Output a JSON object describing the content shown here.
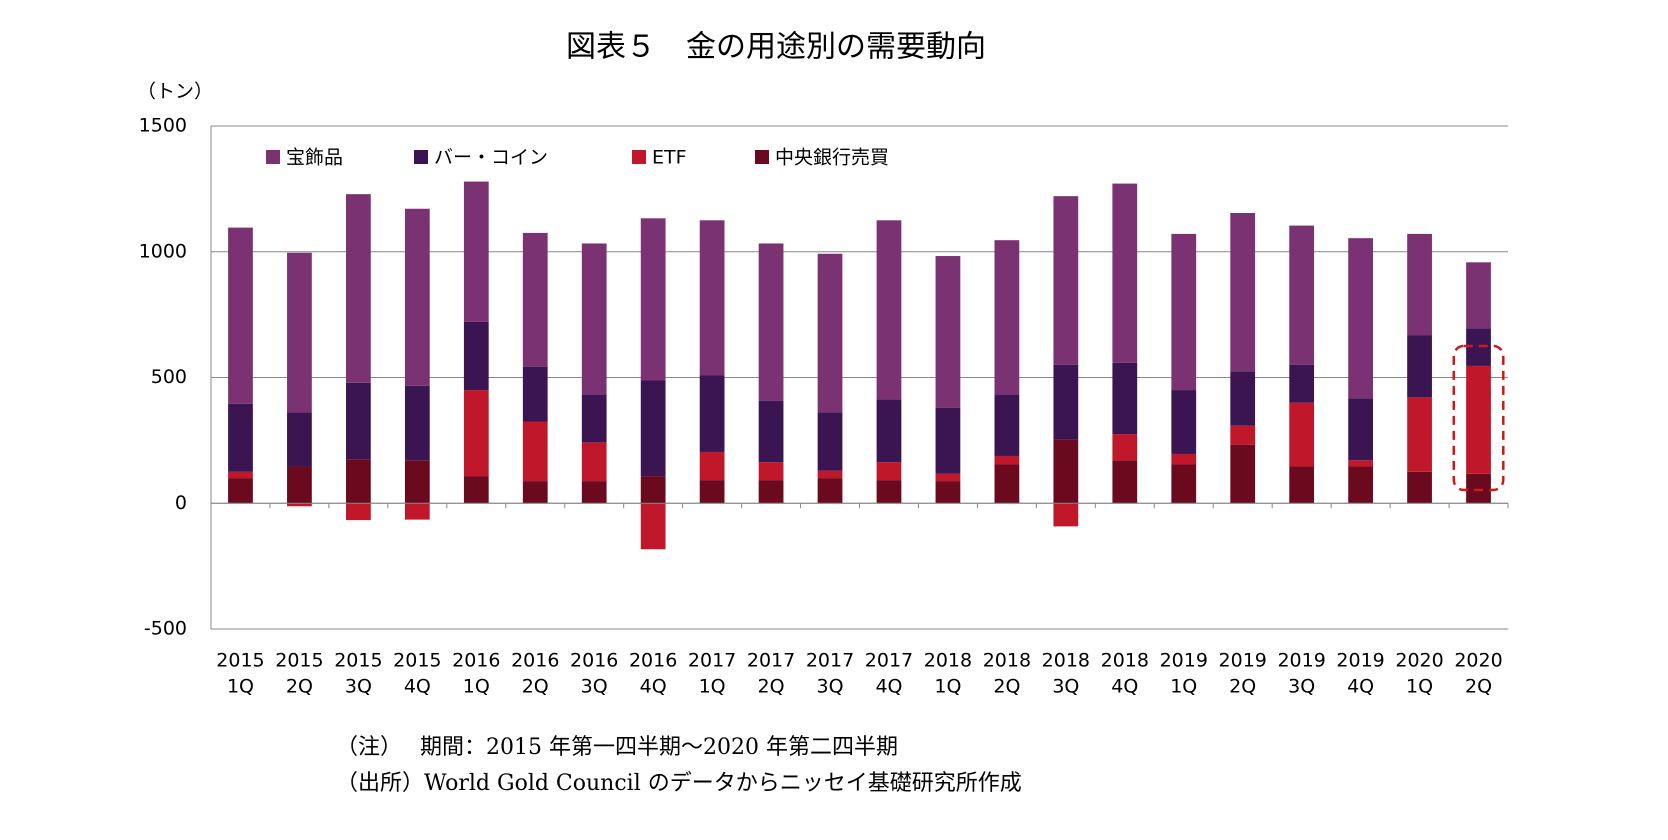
{
  "chart_data": {
    "type": "bar",
    "stacked": true,
    "title": "図表５　金の用途別の需要動向",
    "y_label": "（トン）",
    "categories": [
      [
        "2015",
        "1Q"
      ],
      [
        "2015",
        "2Q"
      ],
      [
        "2015",
        "3Q"
      ],
      [
        "2015",
        "4Q"
      ],
      [
        "2016",
        "1Q"
      ],
      [
        "2016",
        "2Q"
      ],
      [
        "2016",
        "3Q"
      ],
      [
        "2016",
        "4Q"
      ],
      [
        "2017",
        "1Q"
      ],
      [
        "2017",
        "2Q"
      ],
      [
        "2017",
        "3Q"
      ],
      [
        "2017",
        "4Q"
      ],
      [
        "2018",
        "1Q"
      ],
      [
        "2018",
        "2Q"
      ],
      [
        "2018",
        "3Q"
      ],
      [
        "2018",
        "4Q"
      ],
      [
        "2019",
        "1Q"
      ],
      [
        "2019",
        "2Q"
      ],
      [
        "2019",
        "3Q"
      ],
      [
        "2019",
        "4Q"
      ],
      [
        "2020",
        "1Q"
      ],
      [
        "2020",
        "2Q"
      ]
    ],
    "series": [
      {
        "name": "中央銀行売買",
        "color": "#6b0a1e",
        "values": [
          100,
          146,
          175,
          171,
          108,
          88,
          88,
          108,
          92,
          92,
          100,
          92,
          88,
          154,
          254,
          171,
          154,
          233,
          146,
          146,
          125,
          117
        ]
      },
      {
        "name": "ETF",
        "color": "#c0182a",
        "values": [
          25,
          -12,
          -67,
          -65,
          342,
          237,
          154,
          -183,
          112,
          71,
          29,
          71,
          29,
          34,
          -92,
          104,
          42,
          75,
          254,
          25,
          296,
          429
        ]
      },
      {
        "name": "バー・コイン",
        "color": "#3a1552",
        "values": [
          270,
          216,
          304,
          296,
          271,
          217,
          191,
          380,
          304,
          245,
          233,
          250,
          262,
          245,
          296,
          283,
          254,
          217,
          150,
          246,
          246,
          150
        ]
      },
      {
        "name": "宝飾品",
        "color": "#7b3272",
        "values": [
          701,
          634,
          750,
          704,
          558,
          533,
          600,
          645,
          617,
          625,
          630,
          712,
          604,
          613,
          671,
          713,
          621,
          629,
          554,
          637,
          404,
          262
        ]
      }
    ],
    "legend_order": [
      3,
      2,
      1,
      0
    ],
    "ylim": [
      -500,
      1500
    ],
    "yticks": [
      -500,
      0,
      500,
      1000,
      1500
    ],
    "grid": true,
    "notes": [
      "（注）　 期間：2015 年第一四半期～2020 年第二四半期",
      "（出所）World Gold Council のデータからニッセイ基礎研究所作成"
    ]
  }
}
